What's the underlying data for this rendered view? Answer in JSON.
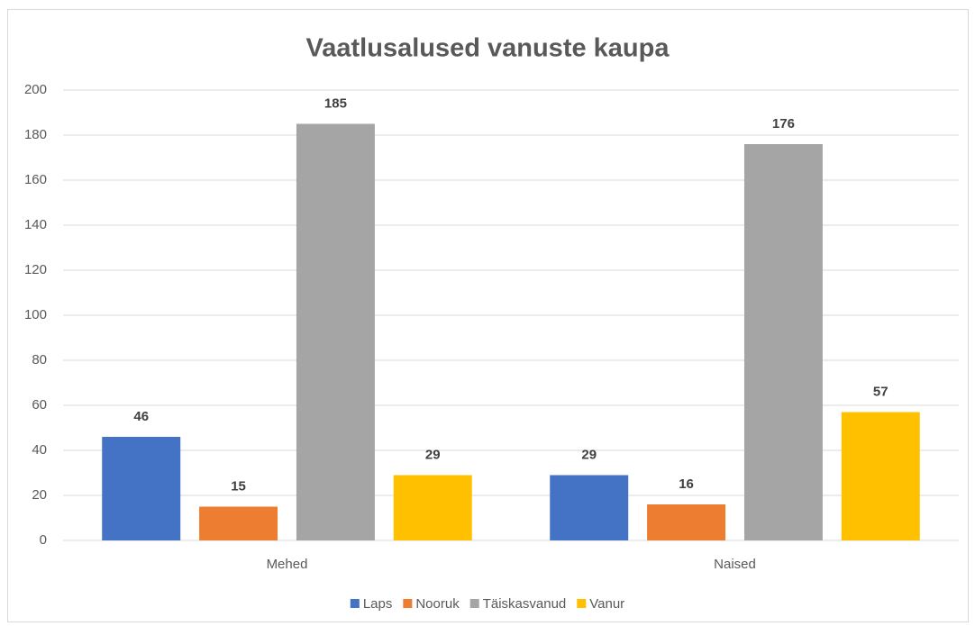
{
  "chart_data": {
    "type": "bar",
    "title": "Vaatlusalused vanuste kaupa",
    "categories": [
      "Mehed",
      "Naised"
    ],
    "series": [
      {
        "name": "Laps",
        "color": "#4472c4",
        "values": [
          46,
          29
        ]
      },
      {
        "name": "Nooruk",
        "color": "#ed7d31",
        "values": [
          15,
          16
        ]
      },
      {
        "name": "Täiskasvanud",
        "color": "#a5a5a5",
        "values": [
          185,
          176
        ]
      },
      {
        "name": "Vanur",
        "color": "#ffc000",
        "values": [
          29,
          57
        ]
      }
    ],
    "ylim": [
      0,
      200
    ],
    "yticks": [
      0,
      20,
      40,
      60,
      80,
      100,
      120,
      140,
      160,
      180,
      200
    ],
    "grid": true,
    "legend": "bottom"
  }
}
